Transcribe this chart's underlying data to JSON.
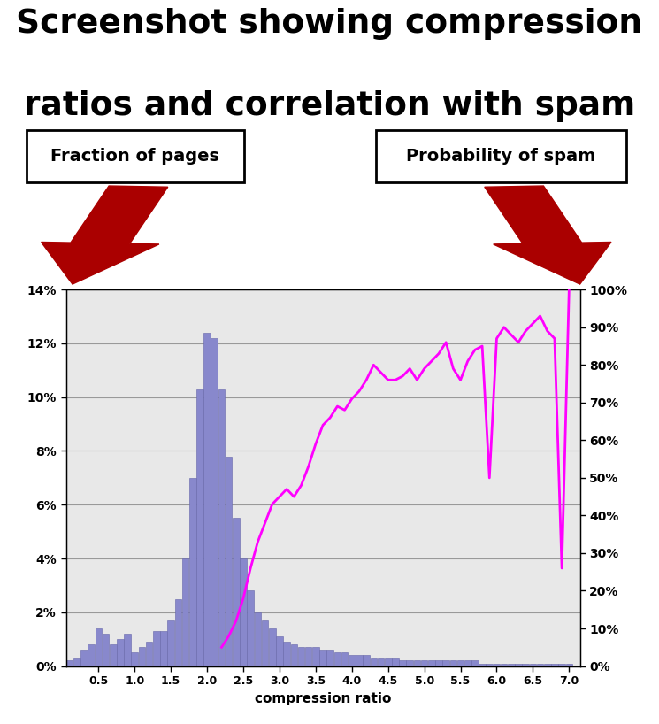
{
  "title_line1": "Screenshot showing compression",
  "title_line2": "ratios and correlation with spam",
  "label_left": "Fraction of pages",
  "label_right": "Probability of spam",
  "xlabel": "compression ratio",
  "bar_color": "#8888cc",
  "bar_edge_color": "#6666aa",
  "line_color": "#ff00ff",
  "bg_color": "#e8e8e8",
  "fig_bg_color": "#ffffff",
  "bar_centers": [
    0.1,
    0.2,
    0.3,
    0.4,
    0.5,
    0.6,
    0.7,
    0.8,
    0.9,
    1.0,
    1.1,
    1.2,
    1.3,
    1.4,
    1.5,
    1.6,
    1.7,
    1.8,
    1.9,
    2.0,
    2.1,
    2.2,
    2.3,
    2.4,
    2.5,
    2.6,
    2.7,
    2.8,
    2.9,
    3.0,
    3.1,
    3.2,
    3.3,
    3.4,
    3.5,
    3.6,
    3.7,
    3.8,
    3.9,
    4.0,
    4.1,
    4.2,
    4.3,
    4.4,
    4.5,
    4.6,
    4.7,
    4.8,
    4.9,
    5.0,
    5.1,
    5.2,
    5.3,
    5.4,
    5.5,
    5.6,
    5.7,
    5.8,
    5.9,
    6.0,
    6.1,
    6.2,
    6.3,
    6.4,
    6.5,
    6.6,
    6.7,
    6.8,
    6.9,
    7.0
  ],
  "bar_heights": [
    0.002,
    0.003,
    0.006,
    0.008,
    0.014,
    0.012,
    0.008,
    0.01,
    0.012,
    0.005,
    0.007,
    0.009,
    0.013,
    0.013,
    0.017,
    0.025,
    0.04,
    0.07,
    0.103,
    0.124,
    0.122,
    0.103,
    0.078,
    0.055,
    0.04,
    0.028,
    0.02,
    0.017,
    0.014,
    0.011,
    0.009,
    0.008,
    0.007,
    0.007,
    0.007,
    0.006,
    0.006,
    0.005,
    0.005,
    0.004,
    0.004,
    0.004,
    0.003,
    0.003,
    0.003,
    0.003,
    0.002,
    0.002,
    0.002,
    0.002,
    0.002,
    0.002,
    0.002,
    0.002,
    0.002,
    0.002,
    0.002,
    0.001,
    0.001,
    0.001,
    0.001,
    0.001,
    0.001,
    0.001,
    0.001,
    0.001,
    0.001,
    0.001,
    0.001,
    0.001
  ],
  "spam_x": [
    2.2,
    2.3,
    2.4,
    2.5,
    2.6,
    2.7,
    2.8,
    2.9,
    3.0,
    3.1,
    3.2,
    3.3,
    3.4,
    3.5,
    3.6,
    3.7,
    3.8,
    3.9,
    4.0,
    4.1,
    4.2,
    4.3,
    4.4,
    4.5,
    4.6,
    4.7,
    4.8,
    4.9,
    5.0,
    5.1,
    5.2,
    5.3,
    5.4,
    5.5,
    5.6,
    5.7,
    5.8,
    5.9,
    6.0,
    6.1,
    6.2,
    6.3,
    6.4,
    6.5,
    6.6,
    6.7,
    6.8,
    6.9,
    7.0
  ],
  "spam_y": [
    0.05,
    0.08,
    0.12,
    0.18,
    0.26,
    0.33,
    0.38,
    0.43,
    0.45,
    0.47,
    0.45,
    0.48,
    0.53,
    0.59,
    0.64,
    0.66,
    0.69,
    0.68,
    0.71,
    0.73,
    0.76,
    0.8,
    0.78,
    0.76,
    0.76,
    0.77,
    0.79,
    0.76,
    0.79,
    0.81,
    0.83,
    0.86,
    0.79,
    0.76,
    0.81,
    0.84,
    0.85,
    0.5,
    0.87,
    0.9,
    0.88,
    0.86,
    0.89,
    0.91,
    0.93,
    0.89,
    0.87,
    0.26,
    1.0
  ],
  "ylim_left": [
    0,
    0.14
  ],
  "ylim_right": [
    0,
    1.0
  ],
  "xlim": [
    0.05,
    7.15
  ],
  "arrow_color": "#aa0000"
}
